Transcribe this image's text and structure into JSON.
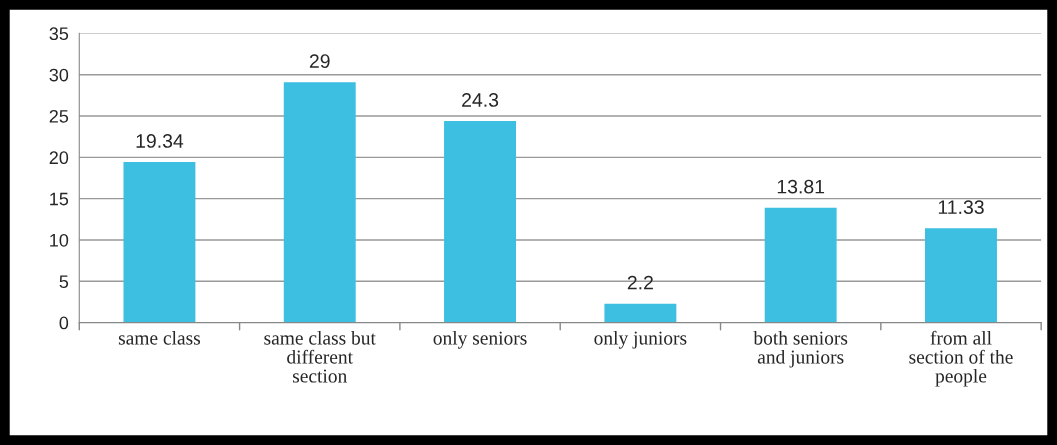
{
  "chart_data": {
    "type": "bar",
    "categories": [
      "same class",
      "same class but different section",
      "only seniors",
      "only juniors",
      "both seniors and juniors",
      "from all section of the people"
    ],
    "values": [
      19.34,
      29,
      24.3,
      2.2,
      13.81,
      11.33
    ],
    "color": "#3cbfe0",
    "ylim": [
      0,
      35
    ],
    "yticks": [
      0,
      5,
      10,
      15,
      20,
      25,
      30,
      35
    ],
    "grid": "y",
    "data_labels": true,
    "legend": false
  }
}
